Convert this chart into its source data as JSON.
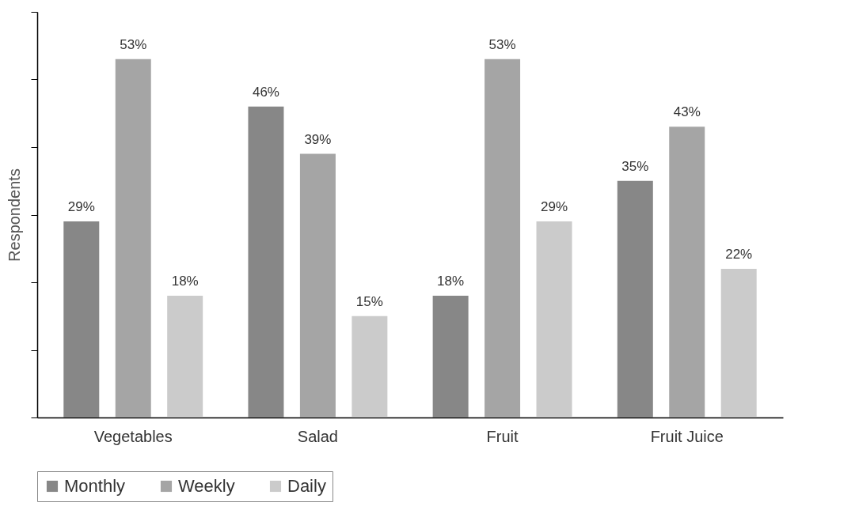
{
  "chart_data": {
    "type": "bar",
    "ylabel": "Respondents",
    "categories": [
      "Vegetables",
      "Salad",
      "Fruit",
      "Fruit Juice"
    ],
    "series": [
      {
        "name": "Monthly",
        "color": "#878787",
        "values": [
          29,
          46,
          18,
          35
        ],
        "value_labels": [
          "29%",
          "46%",
          "18%",
          "35%"
        ]
      },
      {
        "name": "Weekly",
        "color": "#a5a5a5",
        "values": [
          53,
          39,
          53,
          43
        ],
        "value_labels": [
          "53%",
          "39%",
          "53%",
          "43%"
        ]
      },
      {
        "name": "Daily",
        "color": "#cbcbcb",
        "values": [
          18,
          15,
          29,
          22
        ],
        "value_labels": [
          "18%",
          "15%",
          "29%",
          "22%"
        ]
      }
    ],
    "ylim": [
      0,
      60
    ],
    "yticks": [
      {
        "value": 0,
        "label": null
      },
      {
        "value": 10,
        "label": null
      },
      {
        "value": 20,
        "label": null
      },
      {
        "value": 30,
        "label": null
      },
      {
        "value": 40,
        "label": null
      },
      {
        "value": 50,
        "label": null
      },
      {
        "value": 60,
        "label": null
      }
    ],
    "tick_labels": "x",
    "grid": false,
    "legend": "bottom"
  }
}
